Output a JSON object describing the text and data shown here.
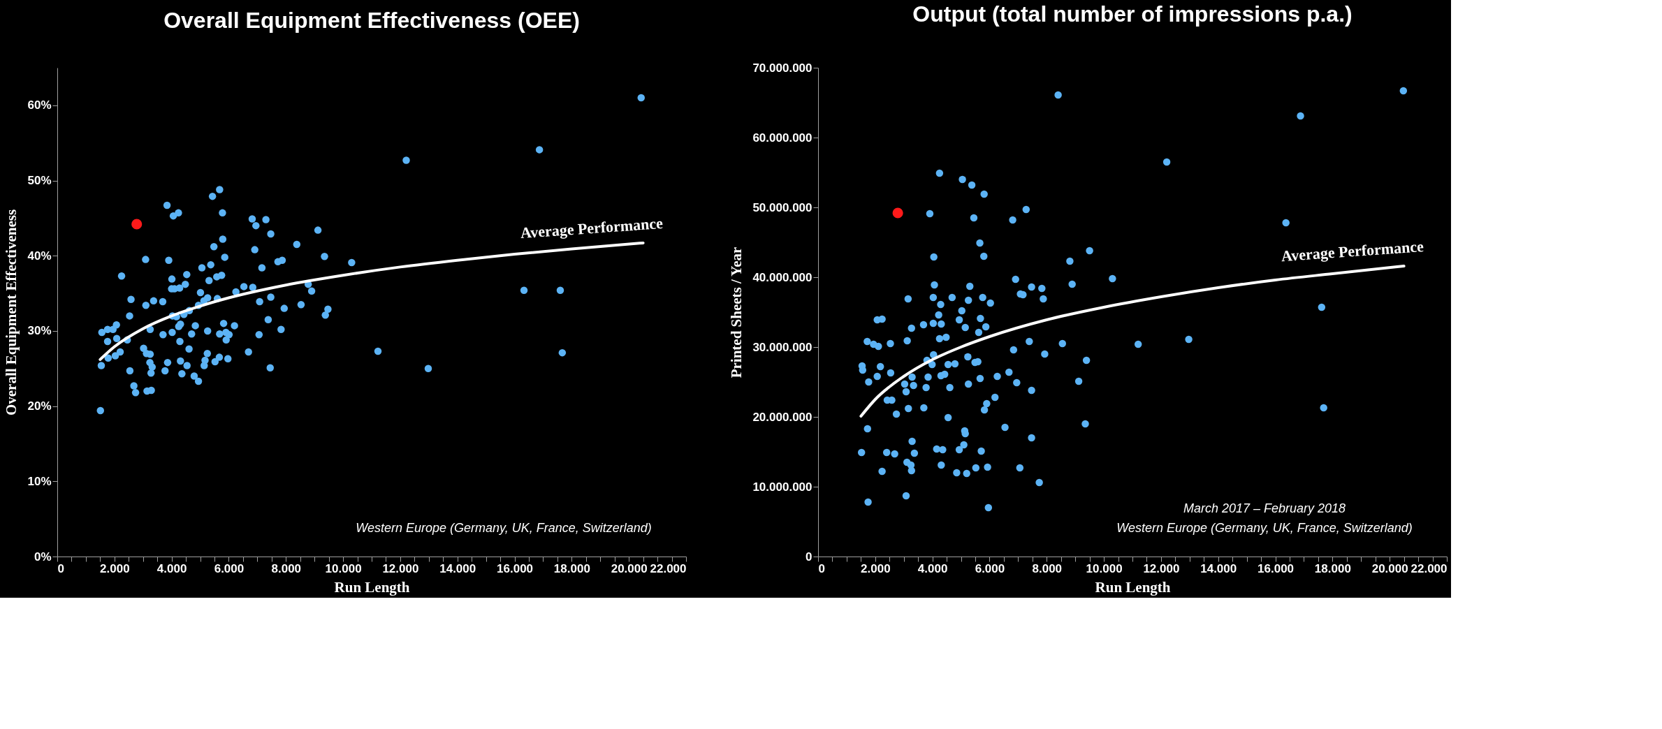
{
  "chart_data": [
    {
      "type": "scatter",
      "title": "Overall Equipment Effectiveness (OEE)",
      "xlabel": "Run Length",
      "ylabel": "Overall Equipment Effectiveness",
      "grid": false,
      "xlim": [
        0,
        22000
      ],
      "ylim": [
        0,
        65
      ],
      "xticks": [
        0,
        {
          "value": 500,
          "label": null
        },
        {
          "value": 1000,
          "label": null
        },
        {
          "value": 1500,
          "label": null
        },
        {
          "value": 2000,
          "label": "2.000"
        },
        {
          "value": 2500,
          "label": null
        },
        {
          "value": 3000,
          "label": null
        },
        {
          "value": 3500,
          "label": null
        },
        {
          "value": 4000,
          "label": "4.000"
        },
        {
          "value": 4500,
          "label": null
        },
        {
          "value": 5000,
          "label": null
        },
        {
          "value": 5500,
          "label": null
        },
        {
          "value": 6000,
          "label": "6.000"
        },
        {
          "value": 6500,
          "label": null
        },
        {
          "value": 7000,
          "label": null
        },
        {
          "value": 7500,
          "label": null
        },
        {
          "value": 8000,
          "label": "8.000"
        },
        {
          "value": 8500,
          "label": null
        },
        {
          "value": 9000,
          "label": null
        },
        {
          "value": 9500,
          "label": null
        },
        {
          "value": 10000,
          "label": "10.000"
        },
        {
          "value": 10500,
          "label": null
        },
        {
          "value": 11000,
          "label": null
        },
        {
          "value": 11500,
          "label": null
        },
        {
          "value": 12000,
          "label": "12.000"
        },
        {
          "value": 12500,
          "label": null
        },
        {
          "value": 13000,
          "label": null
        },
        {
          "value": 13500,
          "label": null
        },
        {
          "value": 14000,
          "label": "14.000"
        },
        {
          "value": 14500,
          "label": null
        },
        {
          "value": 15000,
          "label": null
        },
        {
          "value": 15500,
          "label": null
        },
        {
          "value": 16000,
          "label": "16.000"
        },
        {
          "value": 16500,
          "label": null
        },
        {
          "value": 17000,
          "label": null
        },
        {
          "value": 17500,
          "label": null
        },
        {
          "value": 18000,
          "label": "18.000"
        },
        {
          "value": 18500,
          "label": null
        },
        {
          "value": 19000,
          "label": null
        },
        {
          "value": 19500,
          "label": null
        },
        {
          "value": 20000,
          "label": "20.000"
        },
        {
          "value": 20500,
          "label": null
        },
        {
          "value": 21000,
          "label": null
        },
        {
          "value": 21500,
          "label": null
        },
        {
          "value": 22000,
          "label": "22.000"
        }
      ],
      "yticks": [
        {
          "value": 0,
          "label": "0%"
        },
        {
          "value": 10,
          "label": "10%"
        },
        {
          "value": 20,
          "label": "20%"
        },
        {
          "value": 30,
          "label": "30%"
        },
        {
          "value": 40,
          "label": "40%"
        },
        {
          "value": 50,
          "label": "50%"
        },
        {
          "value": 60,
          "label": "60%"
        }
      ],
      "series": [
        {
          "marker": "circle",
          "color": "#5cb3f5",
          "x": [
            1510,
            1540,
            1560,
            1760,
            1780,
            1760,
            1950,
            2070,
            2030,
            2080,
            2200,
            2250,
            2450,
            2530,
            2540,
            2580,
            2680,
            2740,
            3020,
            3090,
            3100,
            3120,
            3140,
            3250,
            3240,
            3250,
            3280,
            3290,
            3320,
            3370,
            3690,
            3700,
            3770,
            3840,
            3860,
            3900,
            4010,
            4020,
            4000,
            4030,
            4060,
            4100,
            4170,
            4240,
            4250,
            4280,
            4310,
            4290,
            4310,
            4360,
            4430,
            4480,
            4530,
            4540,
            4610,
            4620,
            4700,
            4790,
            4830,
            4940,
            4940,
            5010,
            5060,
            5130,
            5140,
            5170,
            5250,
            5260,
            5260,
            5310,
            5370,
            5430,
            5480,
            5520,
            5580,
            5600,
            5670,
            5680,
            5680,
            5750,
            5780,
            5790,
            5820,
            5860,
            5900,
            5910,
            5970,
            6010,
            6200,
            6250,
            6530,
            6690,
            6820,
            6840,
            6910,
            6950,
            7060,
            7080,
            7160,
            7300,
            7380,
            7450,
            7470,
            7470,
            7720,
            7830,
            7870,
            7940,
            8380,
            8530,
            8780,
            8900,
            9120,
            9350,
            9380,
            9470,
            10300,
            11220,
            12210,
            12980,
            16330,
            16870,
            17600,
            17670,
            20430
          ],
          "values": [
            19.4,
            25.4,
            29.8,
            30.2,
            26.4,
            28.6,
            30.2,
            30.8,
            26.7,
            29.0,
            27.2,
            37.3,
            28.8,
            32.0,
            24.7,
            34.2,
            22.7,
            21.8,
            27.7,
            39.5,
            33.4,
            27.0,
            22.0,
            26.9,
            25.8,
            30.2,
            24.4,
            22.1,
            25.2,
            34.0,
            33.9,
            29.5,
            24.7,
            46.7,
            25.8,
            39.4,
            36.9,
            29.8,
            35.6,
            32.0,
            45.3,
            35.6,
            31.9,
            45.7,
            30.6,
            35.7,
            30.9,
            28.6,
            26.0,
            24.3,
            32.2,
            36.2,
            37.5,
            25.4,
            27.6,
            32.7,
            29.6,
            24.0,
            30.7,
            23.3,
            33.4,
            35.1,
            38.4,
            34.0,
            25.4,
            26.1,
            27.0,
            30.0,
            34.4,
            36.7,
            38.8,
            47.9,
            41.2,
            25.9,
            37.2,
            34.3,
            26.5,
            48.8,
            29.6,
            37.4,
            45.7,
            42.2,
            31.0,
            39.8,
            29.8,
            28.8,
            26.3,
            29.5,
            30.7,
            35.2,
            35.9,
            27.2,
            44.9,
            35.8,
            40.8,
            44.0,
            29.5,
            33.9,
            38.4,
            44.8,
            31.5,
            25.1,
            42.9,
            34.5,
            39.2,
            30.2,
            39.4,
            33.0,
            41.5,
            33.5,
            36.2,
            35.3,
            43.4,
            39.9,
            32.1,
            32.9,
            39.1,
            27.3,
            52.7,
            25.0,
            35.4,
            54.1,
            35.4,
            27.1,
            61.0
          ]
        },
        {
          "marker": "circle",
          "color": "#ff1a1a",
          "x": [
            2780
          ],
          "values": [
            44.2
          ]
        },
        {
          "type": "line",
          "marker": "none",
          "color": "#ffffff",
          "x": [
            1500,
            2000,
            3000,
            4000,
            5000,
            6000,
            8000,
            10000,
            12000,
            14000,
            16000,
            18000,
            20500
          ],
          "values": [
            26.2,
            27.9,
            30.3,
            32.0,
            33.3,
            34.4,
            36.1,
            37.4,
            38.5,
            39.4,
            40.2,
            40.9,
            41.7
          ]
        }
      ],
      "annotations": [
        "Average Performance",
        "Western Europe (Germany, UK, France, Switzerland)"
      ]
    },
    {
      "type": "scatter",
      "title": "Output (total number of impressions p.a.)",
      "xlabel": "Run Length",
      "ylabel": "Printed Sheets / Year",
      "grid": false,
      "xlim": [
        0,
        22000
      ],
      "ylim": [
        0,
        70000000
      ],
      "xticks": [
        0,
        {
          "value": 500,
          "label": null
        },
        {
          "value": 1000,
          "label": null
        },
        {
          "value": 1500,
          "label": null
        },
        {
          "value": 2000,
          "label": "2.000"
        },
        {
          "value": 2500,
          "label": null
        },
        {
          "value": 3000,
          "label": null
        },
        {
          "value": 3500,
          "label": null
        },
        {
          "value": 4000,
          "label": "4.000"
        },
        {
          "value": 4500,
          "label": null
        },
        {
          "value": 5000,
          "label": null
        },
        {
          "value": 5500,
          "label": null
        },
        {
          "value": 6000,
          "label": "6.000"
        },
        {
          "value": 6500,
          "label": null
        },
        {
          "value": 7000,
          "label": null
        },
        {
          "value": 7500,
          "label": null
        },
        {
          "value": 8000,
          "label": "8.000"
        },
        {
          "value": 8500,
          "label": null
        },
        {
          "value": 9000,
          "label": null
        },
        {
          "value": 9500,
          "label": null
        },
        {
          "value": 10000,
          "label": "10.000"
        },
        {
          "value": 10500,
          "label": null
        },
        {
          "value": 11000,
          "label": null
        },
        {
          "value": 11500,
          "label": null
        },
        {
          "value": 12000,
          "label": "12.000"
        },
        {
          "value": 12500,
          "label": null
        },
        {
          "value": 13000,
          "label": null
        },
        {
          "value": 13500,
          "label": null
        },
        {
          "value": 14000,
          "label": "14.000"
        },
        {
          "value": 14500,
          "label": null
        },
        {
          "value": 15000,
          "label": null
        },
        {
          "value": 15500,
          "label": null
        },
        {
          "value": 16000,
          "label": "16.000"
        },
        {
          "value": 16500,
          "label": null
        },
        {
          "value": 17000,
          "label": null
        },
        {
          "value": 17500,
          "label": null
        },
        {
          "value": 18000,
          "label": "18.000"
        },
        {
          "value": 18500,
          "label": null
        },
        {
          "value": 19000,
          "label": null
        },
        {
          "value": 19500,
          "label": null
        },
        {
          "value": 20000,
          "label": "20.000"
        },
        {
          "value": 20500,
          "label": null
        },
        {
          "value": 21000,
          "label": null
        },
        {
          "value": 21500,
          "label": null
        },
        {
          "value": 22000,
          "label": "22.000"
        }
      ],
      "yticks": [
        0,
        {
          "value": 10000000,
          "label": "10.000.000"
        },
        {
          "value": 20000000,
          "label": "20.000.000"
        },
        {
          "value": 30000000,
          "label": "30.000.000"
        },
        {
          "value": 40000000,
          "label": "40.000.000"
        },
        {
          "value": 50000000,
          "label": "50.000.000"
        },
        {
          "value": 60000000,
          "label": "60.000.000"
        },
        {
          "value": 70000000,
          "label": "70.000.000"
        }
      ],
      "series": [
        {
          "marker": "circle",
          "color": "#5cb3f5",
          "x": [
            1520,
            1540,
            1560,
            1720,
            1730,
            1750,
            1770,
            1940,
            2070,
            2070,
            2110,
            2180,
            2240,
            2240,
            2400,
            2420,
            2540,
            2530,
            2580,
            2680,
            2740,
            3030,
            3080,
            3080,
            3120,
            3150,
            3160,
            3110,
            3250,
            3270,
            3270,
            3290,
            3290,
            3340,
            3370,
            3690,
            3700,
            3780,
            3810,
            3850,
            3910,
            3990,
            4030,
            4030,
            4040,
            4050,
            4070,
            4150,
            4220,
            4250,
            4250,
            4290,
            4300,
            4310,
            4310,
            4360,
            4430,
            4480,
            4550,
            4550,
            4610,
            4690,
            4790,
            4850,
            4940,
            4940,
            5030,
            5050,
            5100,
            5130,
            5150,
            5150,
            5200,
            5240,
            5260,
            5260,
            5310,
            5380,
            5450,
            5490,
            5520,
            5590,
            5620,
            5660,
            5670,
            5680,
            5710,
            5760,
            5800,
            5810,
            5820,
            5870,
            5900,
            5930,
            5960,
            6030,
            6190,
            6270,
            6540,
            6680,
            6810,
            6840,
            6910,
            6950,
            7060,
            7080,
            7170,
            7280,
            7390,
            7470,
            7470,
            7470,
            7740,
            7830,
            7880,
            7930,
            8400,
            8550,
            8810,
            8890,
            9120,
            9350,
            9390,
            9500,
            10300,
            11200,
            12200,
            12970,
            16370,
            16880,
            17620,
            17690,
            20480
          ],
          "values": [
            14900000,
            27300000,
            26700000,
            30800000,
            18300000,
            7800000,
            25000000,
            30400000,
            33900000,
            25800000,
            30100000,
            27200000,
            34000000,
            12200000,
            14900000,
            22400000,
            26300000,
            30500000,
            22400000,
            14700000,
            20400000,
            24700000,
            23600000,
            8700000,
            30900000,
            36900000,
            21200000,
            13500000,
            13100000,
            32700000,
            12300000,
            25700000,
            16500000,
            24500000,
            14800000,
            33200000,
            21300000,
            24200000,
            28100000,
            25700000,
            49100000,
            27500000,
            37100000,
            33400000,
            28900000,
            42900000,
            38900000,
            15400000,
            34600000,
            54900000,
            31200000,
            36100000,
            25900000,
            33300000,
            13100000,
            15300000,
            26100000,
            31400000,
            27500000,
            19900000,
            24200000,
            37100000,
            27600000,
            12000000,
            15300000,
            33900000,
            35200000,
            54000000,
            16000000,
            18000000,
            17600000,
            32800000,
            11900000,
            28600000,
            36700000,
            24700000,
            38700000,
            53200000,
            48500000,
            27800000,
            12700000,
            27900000,
            32100000,
            44900000,
            25500000,
            34100000,
            15100000,
            37100000,
            43000000,
            51900000,
            21000000,
            32900000,
            21900000,
            12800000,
            7000000,
            36300000,
            22800000,
            25800000,
            18500000,
            26400000,
            48200000,
            29600000,
            39700000,
            24900000,
            12700000,
            37600000,
            37500000,
            49700000,
            30800000,
            38600000,
            23800000,
            17000000,
            10600000,
            38400000,
            36900000,
            29000000,
            66100000,
            30500000,
            42300000,
            39000000,
            25100000,
            19000000,
            28100000,
            43800000,
            39800000,
            30400000,
            56500000,
            31100000,
            47800000,
            63100000,
            35700000,
            21300000,
            66700000
          ]
        },
        {
          "marker": "circle",
          "color": "#ff1a1a",
          "x": [
            2790
          ],
          "values": [
            49200000
          ]
        },
        {
          "type": "line",
          "marker": "none",
          "color": "#ffffff",
          "x": [
            1500,
            2000,
            3000,
            4000,
            5000,
            6000,
            8000,
            10000,
            12000,
            14000,
            16000,
            18000,
            20500
          ],
          "values": [
            20100000,
            22500000,
            25800000,
            28200000,
            30000000,
            31500000,
            33900000,
            35700000,
            37200000,
            38500000,
            39600000,
            40500000,
            41600000
          ]
        }
      ],
      "annotations": [
        "Average Performance",
        "March 2017 – February 2018",
        "Western Europe (Germany, UK, France, Switzerland)"
      ]
    }
  ]
}
